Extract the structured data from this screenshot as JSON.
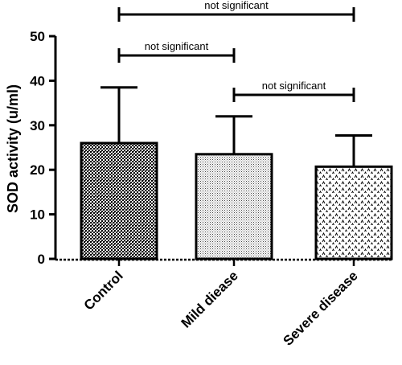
{
  "chart_data": {
    "type": "bar",
    "title": "",
    "xlabel": "",
    "ylabel": "SOD activity (u/ml)",
    "ylim": [
      0,
      50
    ],
    "yticks": [
      "0",
      "10",
      "20",
      "30",
      "40",
      "50"
    ],
    "categories": [
      "Control",
      "Mild diease",
      "Severe disease"
    ],
    "values": [
      26,
      23.5,
      20.7
    ],
    "errors": [
      12.5,
      8.5,
      7
    ],
    "patterns": [
      "crosshatch-dense",
      "dots-fine",
      "caret-sparse"
    ],
    "significance": [
      {
        "from": 0,
        "to": 2,
        "label": "not significant",
        "level": 3
      },
      {
        "from": 0,
        "to": 1,
        "label": "not significant",
        "level": 2
      },
      {
        "from": 1,
        "to": 2,
        "label": "not significant",
        "level": 1
      }
    ]
  }
}
